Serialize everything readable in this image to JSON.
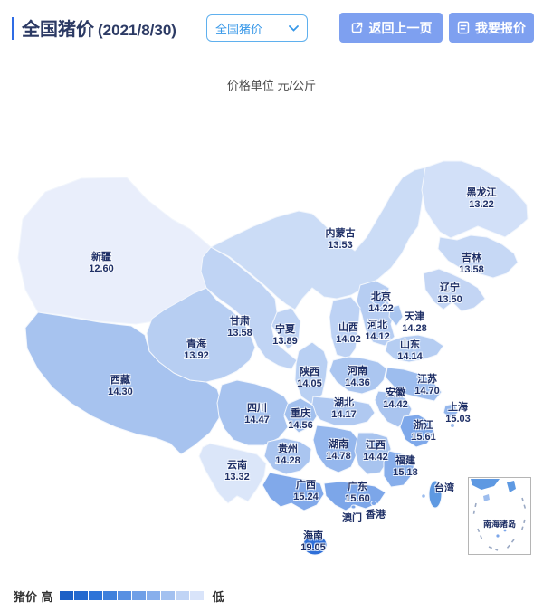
{
  "header": {
    "title": "全国猪价",
    "date": "(2021/8/30)",
    "region_select": {
      "value": "全国猪价"
    },
    "back_button": "返回上一页",
    "quote_button": "我要报价"
  },
  "unit_note": "价格单位 元/公斤",
  "map": {
    "inset_label": "南海诸岛",
    "provinces": [
      {
        "id": "xinjiang",
        "name": "新疆",
        "price": "12.60",
        "color": "#e9eefb"
      },
      {
        "id": "tibet",
        "name": "西藏",
        "price": "14.30",
        "color": "#a7c3ef"
      },
      {
        "id": "qinghai",
        "name": "青海",
        "price": "13.92",
        "color": "#b7cef2"
      },
      {
        "id": "gansu",
        "name": "甘肃",
        "price": "13.58",
        "color": "#c0d4f4"
      },
      {
        "id": "ningxia",
        "name": "宁夏",
        "price": "13.89",
        "color": "#c0d4f4"
      },
      {
        "id": "neimenggu",
        "name": "内蒙古",
        "price": "13.53",
        "color": "#cbdcf6"
      },
      {
        "id": "heilongjiang",
        "name": "黑龙江",
        "price": "13.22",
        "color": "#d2e0f8"
      },
      {
        "id": "jilin",
        "name": "吉林",
        "price": "13.58",
        "color": "#c6d8f5"
      },
      {
        "id": "liaoning",
        "name": "辽宁",
        "price": "13.50",
        "color": "#c3d5f4"
      },
      {
        "id": "hebei",
        "name": "河北",
        "price": "14.12",
        "color": "#b6cdf2"
      },
      {
        "id": "shanxi",
        "name": "山西",
        "price": "14.02",
        "color": "#bdd2f4"
      },
      {
        "id": "shandong",
        "name": "山东",
        "price": "14.14",
        "color": "#b5cdf2"
      },
      {
        "id": "shaanxi",
        "name": "陕西",
        "price": "14.05",
        "color": "#b9d0f3"
      },
      {
        "id": "henan",
        "name": "河南",
        "price": "14.36",
        "color": "#abc6f0"
      },
      {
        "id": "jiangsu",
        "name": "江苏",
        "price": "14.70",
        "color": "#9dbdee"
      },
      {
        "id": "anhui",
        "name": "安徽",
        "price": "14.42",
        "color": "#a9c4ef"
      },
      {
        "id": "hubei",
        "name": "湖北",
        "price": "14.17",
        "color": "#b0c9f1"
      },
      {
        "id": "shanghai",
        "name": "上海",
        "price": "15.03",
        "color": "#93b6ec"
      },
      {
        "id": "zhejiang",
        "name": "浙江",
        "price": "15.61",
        "color": "#7ea8ea"
      },
      {
        "id": "sichuan",
        "name": "四川",
        "price": "14.47",
        "color": "#a7c3ef"
      },
      {
        "id": "chongqing",
        "name": "重庆",
        "price": "14.56",
        "color": "#a2c0ee"
      },
      {
        "id": "guizhou",
        "name": "贵州",
        "price": "14.28",
        "color": "#aac5f0"
      },
      {
        "id": "hunan",
        "name": "湖南",
        "price": "14.78",
        "color": "#95b7ed"
      },
      {
        "id": "jiangxi",
        "name": "江西",
        "price": "14.42",
        "color": "#a8c4ef"
      },
      {
        "id": "fujian",
        "name": "福建",
        "price": "15.18",
        "color": "#87aeeb"
      },
      {
        "id": "yunnan",
        "name": "云南",
        "price": "13.32",
        "color": "#dbe6f9"
      },
      {
        "id": "guangxi",
        "name": "广西",
        "price": "15.24",
        "color": "#81a9ea"
      },
      {
        "id": "guangdong",
        "name": "广东",
        "price": "15.60",
        "color": "#7ca6e9"
      },
      {
        "id": "hainan",
        "name": "海南",
        "price": "19.05",
        "color": "#2f6fd8"
      },
      {
        "id": "taiwan",
        "name": "台湾",
        "price": "",
        "color": "#5e99e2"
      },
      {
        "id": "beijing",
        "name": "北京",
        "price": "14.22",
        "color": "#a3c0ee"
      },
      {
        "id": "tianjin",
        "name": "天津",
        "price": "14.28",
        "color": "#aac6f0"
      },
      {
        "id": "hongkong",
        "name": "香港",
        "price": "",
        "color": "#7ca6e9"
      },
      {
        "id": "macau",
        "name": "澳门",
        "price": "",
        "color": "#7ca6e9"
      }
    ]
  },
  "legend": {
    "label": "猪价",
    "high": "高",
    "low": "低",
    "colors": [
      "#1c60c6",
      "#2369cf",
      "#2e74d8",
      "#3e80dc",
      "#5890e2",
      "#6f9fe7",
      "#88afec",
      "#a3c1f0",
      "#c0d4f5",
      "#d9e4fa"
    ]
  },
  "colors": {
    "accent_bar": "#2f6ce5",
    "title_text": "#2c3a64",
    "button_bg": "#7ea0f0",
    "select_border": "#5fb0ee",
    "select_text": "#3898e8",
    "label_text": "#1e2f66"
  }
}
